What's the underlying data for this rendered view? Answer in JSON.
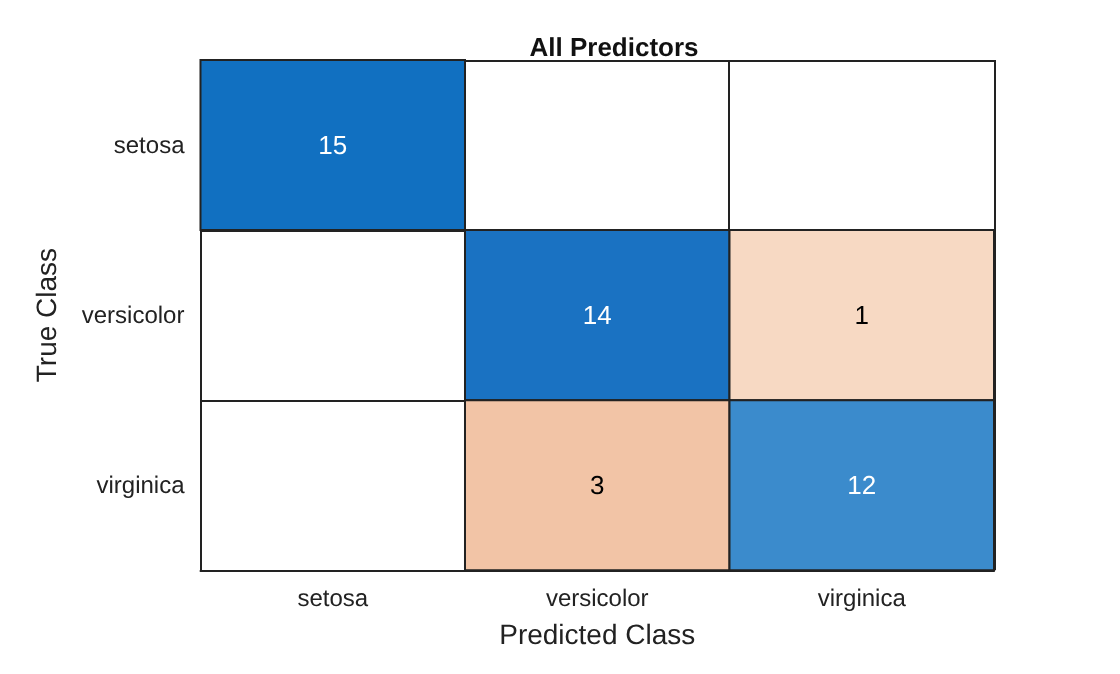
{
  "chart_data": {
    "type": "heatmap",
    "title": "All Predictors",
    "xlabel": "Predicted Class",
    "ylabel": "True Class",
    "categories": [
      "setosa",
      "versicolor",
      "virginica"
    ],
    "y_categories": [
      "setosa",
      "versicolor",
      "virginica"
    ],
    "cells": [
      [
        15,
        null,
        null
      ],
      [
        null,
        14,
        1
      ],
      [
        null,
        3,
        12
      ]
    ],
    "colors": [
      [
        "#1170c1",
        null,
        null
      ],
      [
        null,
        "#1a72c2",
        "#f7d9c3"
      ],
      [
        null,
        "#f2c4a6",
        "#3b8bcc"
      ]
    ],
    "data_labels": true
  }
}
